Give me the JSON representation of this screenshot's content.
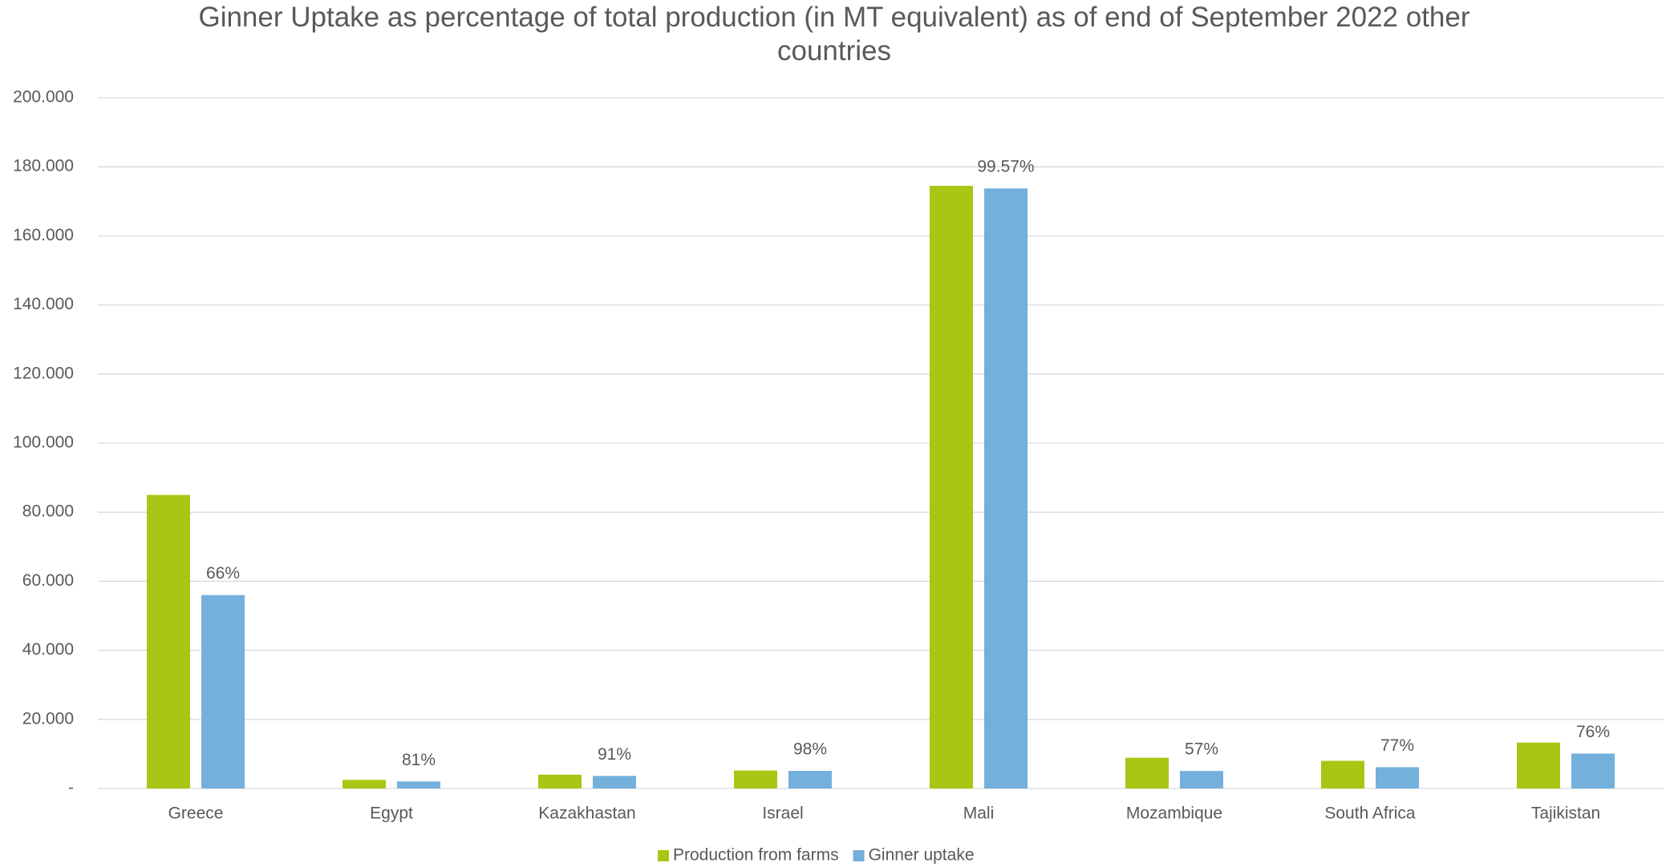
{
  "chart_data": {
    "type": "bar",
    "title": "Ginner Uptake as percentage of total production (in MT equivalent) as of end of September 2022 other countries",
    "categories": [
      "Greece",
      "Egypt",
      "Kazakhastan",
      "Israel",
      "Mali",
      "Mozambique",
      "South Africa",
      "Tajikistan"
    ],
    "series": [
      {
        "name": "Production from farms",
        "color": "#a8c614",
        "values": [
          85000,
          2500,
          4000,
          5200,
          174500,
          8900,
          8000,
          13300
        ]
      },
      {
        "name": "Ginner uptake",
        "color": "#74b0dc",
        "values": [
          56000,
          2030,
          3640,
          5100,
          173750,
          5070,
          6160,
          10100
        ]
      }
    ],
    "percent_labels": [
      "66%",
      "81%",
      "91%",
      "98%",
      "99.57%",
      "57%",
      "77%",
      "76%"
    ],
    "ylim": [
      0,
      200000
    ],
    "yticks": [
      {
        "value": 0,
        "label": "-"
      },
      {
        "value": 20000,
        "label": "20.000"
      },
      {
        "value": 40000,
        "label": "40.000"
      },
      {
        "value": 60000,
        "label": "60.000"
      },
      {
        "value": 80000,
        "label": "80.000"
      },
      {
        "value": 100000,
        "label": "100.000"
      },
      {
        "value": 120000,
        "label": "120.000"
      },
      {
        "value": 140000,
        "label": "140.000"
      },
      {
        "value": 160000,
        "label": "160.000"
      },
      {
        "value": 180000,
        "label": "180.000"
      },
      {
        "value": 200000,
        "label": "200.000"
      }
    ],
    "grid": true,
    "legend": "bottom"
  }
}
